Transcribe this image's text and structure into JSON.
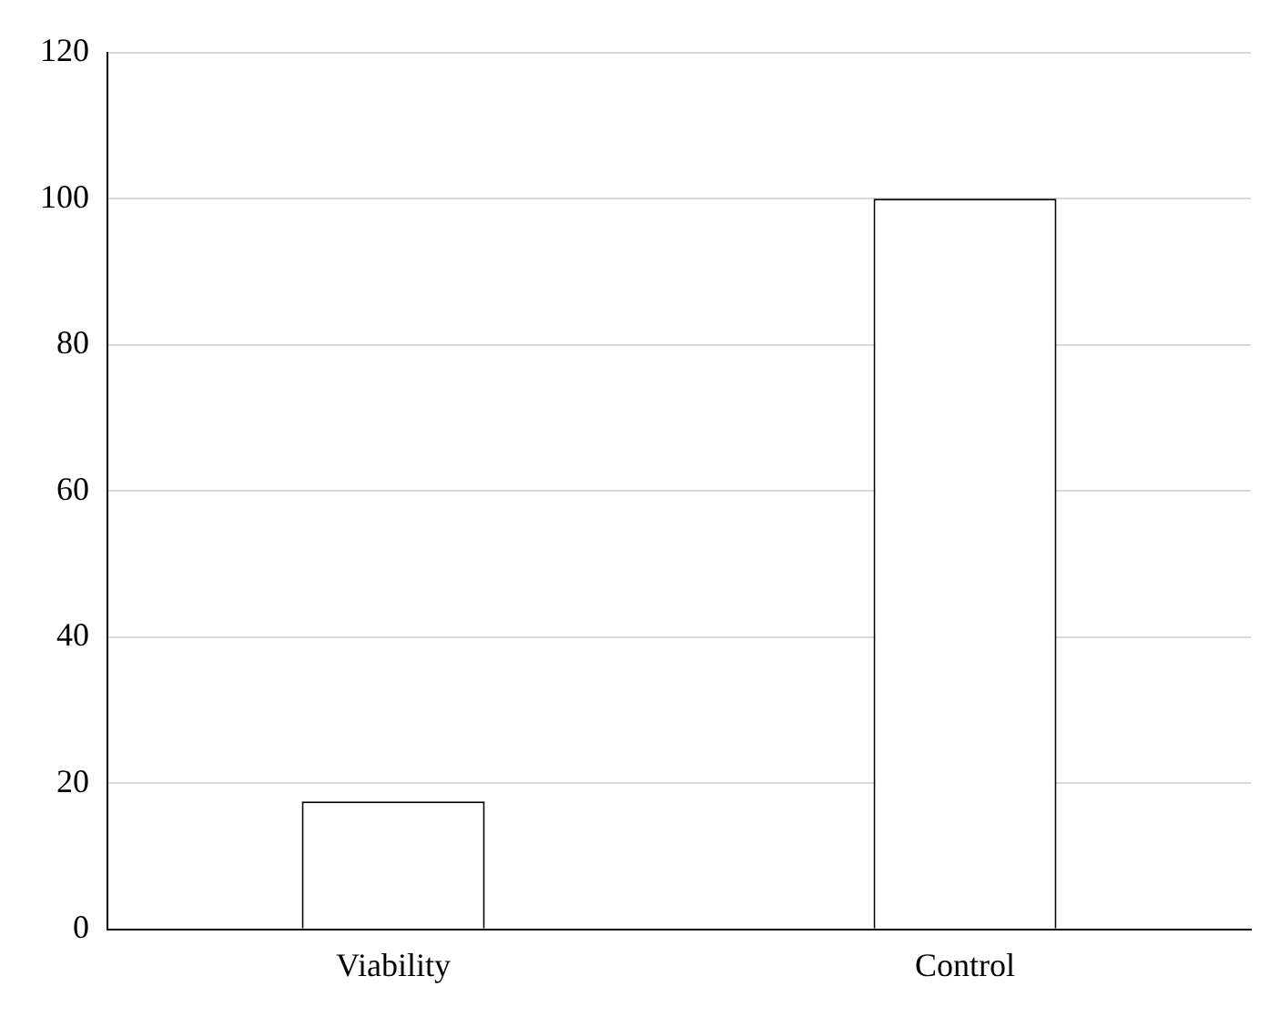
{
  "chart_data": {
    "type": "bar",
    "categories": [
      "Viability",
      "Control"
    ],
    "values": [
      17.5,
      100
    ],
    "color": "#ffffff",
    "ylim": [
      0,
      120
    ],
    "yticks": [
      0,
      20,
      40,
      60,
      80,
      100,
      120
    ],
    "grid": "y",
    "legend": false
  }
}
